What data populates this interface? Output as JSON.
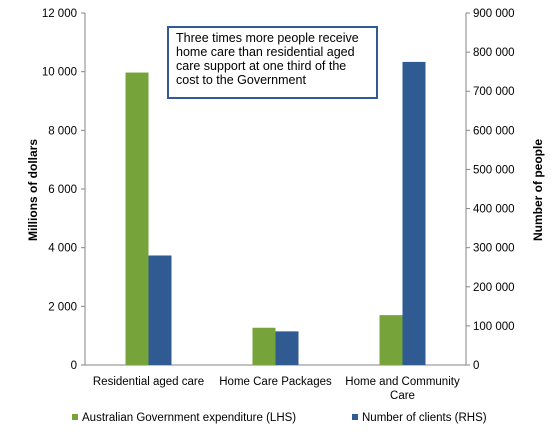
{
  "chart_data": {
    "type": "bar",
    "categories": [
      "Residential aged care",
      "Home Care Packages",
      "Home and Community Care"
    ],
    "category_lines": [
      [
        "Residential aged care"
      ],
      [
        "Home Care Packages"
      ],
      [
        "Home and Community",
        "Care"
      ]
    ],
    "series": [
      {
        "name": "Australian Government expenditure (LHS)",
        "axis": "left",
        "color": "#77a33b",
        "values": [
          9970,
          1270,
          1700
        ]
      },
      {
        "name": "Number of clients (RHS)",
        "axis": "right",
        "color": "#2f5b92",
        "values": [
          280000,
          86000,
          775000
        ]
      }
    ],
    "ylabel": "Millions of dollars",
    "y2label": "Number of people",
    "ylim": [
      0,
      12000
    ],
    "y2lim": [
      0,
      900000
    ],
    "yticks": [
      "0",
      "2 000",
      "4 000",
      "6 000",
      "8 000",
      "10 000",
      "12 000"
    ],
    "y2ticks": [
      "0",
      "100 000",
      "200 000",
      "300 000",
      "400 000",
      "500 000",
      "600 000",
      "700 000",
      "800 000",
      "900 000"
    ],
    "annotation_lines": [
      "Three times more people receive",
      "home care than residential aged",
      "care support  at one third of the",
      "cost to the Government"
    ],
    "grid": false,
    "legend_position": "bottom"
  }
}
